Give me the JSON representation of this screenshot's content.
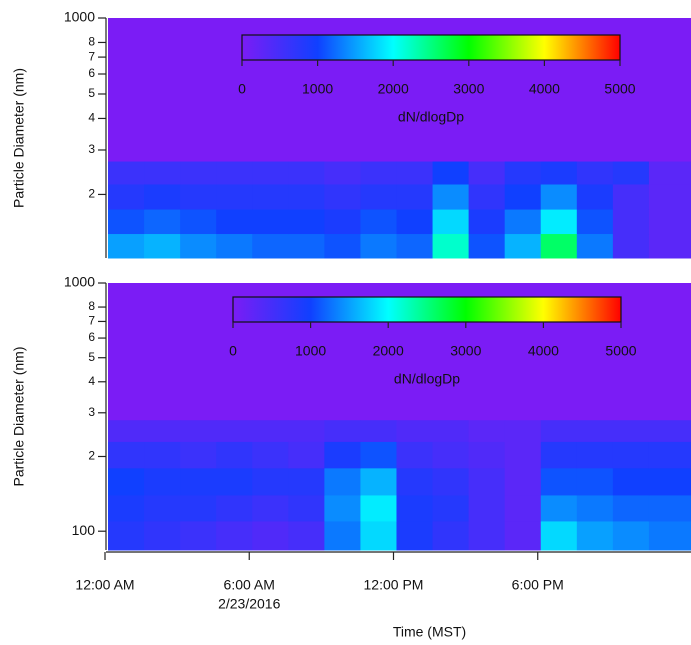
{
  "chart_data": [
    {
      "type": "heatmap",
      "ylabel": "Particle Diameter (nm)",
      "log_y": true,
      "xlim": [
        0,
        24.25
      ],
      "ylim": [
        112,
        1000
      ],
      "yticks": [
        {
          "value": 200,
          "label": "2"
        },
        {
          "value": 300,
          "label": "3"
        },
        {
          "value": 400,
          "label": "4"
        },
        {
          "value": 500,
          "label": "5"
        },
        {
          "value": 600,
          "label": "6"
        },
        {
          "value": 700,
          "label": "7"
        },
        {
          "value": 800,
          "label": "8"
        },
        1000
      ],
      "x": [
        0,
        1.5,
        3,
        4.5,
        6,
        7.5,
        9,
        10.5,
        12,
        13.5,
        15,
        16.5,
        18,
        19.5,
        21,
        22.5,
        24.25
      ],
      "y": [
        112,
        140,
        175,
        220,
        270
      ],
      "z": [
        [
          1500,
          1600,
          1400,
          1300,
          1200,
          1200,
          1100,
          1300,
          1200,
          2200,
          1100,
          1600,
          2600,
          1300,
          500,
          300
        ],
        [
          1100,
          1200,
          1100,
          1000,
          1000,
          1000,
          900,
          1100,
          1000,
          1800,
          900,
          1300,
          1900,
          1100,
          500,
          300
        ],
        [
          800,
          900,
          800,
          800,
          800,
          800,
          700,
          800,
          800,
          1400,
          700,
          1000,
          1400,
          900,
          500,
          300
        ],
        [
          600,
          600,
          600,
          600,
          600,
          600,
          500,
          600,
          600,
          1000,
          500,
          800,
          900,
          700,
          800,
          300
        ]
      ],
      "zlim": [
        0,
        5000
      ],
      "zticks": [
        0,
        1000,
        2000,
        3000,
        4000,
        5000
      ],
      "zlabel": "dN/dlogDp",
      "colors": [
        "#7b1cf5",
        "#1040ff",
        "#00ffff",
        "#00ff00",
        "#ffff00",
        "#ff0000"
      ]
    },
    {
      "type": "heatmap",
      "ylabel": "Particle Diameter (nm)",
      "xlabel": "Time (MST)",
      "log_y": true,
      "xlim": [
        0,
        24.25
      ],
      "xticks": [
        {
          "value": 0,
          "label": "12:00 AM"
        },
        {
          "value": 6,
          "label": "6:00 AM"
        },
        {
          "value": 12,
          "label": "12:00 PM"
        },
        {
          "value": 18,
          "label": "6:00 PM"
        }
      ],
      "date_label": "2/23/2016",
      "ylim": [
        84,
        1000
      ],
      "yticks": [
        100,
        {
          "value": 200,
          "label": "2"
        },
        {
          "value": 300,
          "label": "3"
        },
        {
          "value": 400,
          "label": "4"
        },
        {
          "value": 500,
          "label": "5"
        },
        {
          "value": 600,
          "label": "6"
        },
        {
          "value": 700,
          "label": "7"
        },
        {
          "value": 800,
          "label": "8"
        },
        1000
      ],
      "x": [
        0,
        1.5,
        3,
        4.5,
        6,
        7.5,
        9,
        10.5,
        12,
        13.5,
        15,
        16.5,
        18,
        19.5,
        21,
        22.5,
        24.25
      ],
      "y": [
        84,
        110,
        140,
        180,
        230,
        280
      ],
      "z": [
        [
          800,
          700,
          600,
          500,
          400,
          500,
          1300,
          1800,
          900,
          700,
          500,
          300,
          1800,
          1500,
          1400,
          1300
        ],
        [
          900,
          800,
          800,
          700,
          600,
          700,
          1400,
          1900,
          900,
          800,
          500,
          300,
          1400,
          1300,
          1200,
          1200
        ],
        [
          1000,
          900,
          900,
          900,
          800,
          800,
          1300,
          1600,
          800,
          700,
          500,
          300,
          1100,
          1100,
          1000,
          1000
        ],
        [
          700,
          700,
          600,
          700,
          600,
          500,
          900,
          1100,
          600,
          500,
          400,
          300,
          800,
          800,
          800,
          800
        ],
        [
          400,
          400,
          400,
          400,
          400,
          400,
          500,
          500,
          400,
          400,
          300,
          300,
          500,
          500,
          500,
          500
        ]
      ],
      "zlim": [
        0,
        5000
      ],
      "zticks": [
        0,
        1000,
        2000,
        3000,
        4000,
        5000
      ],
      "zlabel": "dN/dlogDp",
      "colors": [
        "#7b1cf5",
        "#1040ff",
        "#00ffff",
        "#00ff00",
        "#ffff00",
        "#ff0000"
      ]
    }
  ]
}
